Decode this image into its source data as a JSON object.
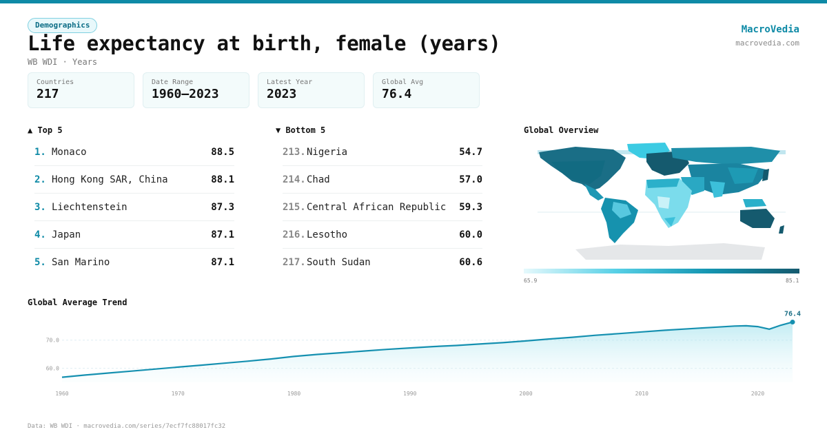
{
  "header": {
    "badge": "Demographics",
    "title": "Life expectancy at birth, female (years)",
    "subtitle": "WB WDI · Years"
  },
  "brand": {
    "name": "MacroVedia",
    "url": "macrovedia.com"
  },
  "stats": [
    {
      "label": "Countries",
      "value": "217"
    },
    {
      "label": "Date Range",
      "value": "1960–2023"
    },
    {
      "label": "Latest Year",
      "value": "2023"
    },
    {
      "label": "Global Avg",
      "value": "76.4"
    }
  ],
  "top5": {
    "title": "▲ Top 5",
    "items": [
      {
        "rank": "1.",
        "name": "Monaco",
        "value": "88.5"
      },
      {
        "rank": "2.",
        "name": "Hong Kong SAR, China",
        "value": "88.1"
      },
      {
        "rank": "3.",
        "name": "Liechtenstein",
        "value": "87.3"
      },
      {
        "rank": "4.",
        "name": "Japan",
        "value": "87.1"
      },
      {
        "rank": "5.",
        "name": "San Marino",
        "value": "87.1"
      }
    ]
  },
  "bottom5": {
    "title": "▼ Bottom 5",
    "items": [
      {
        "rank": "213.",
        "name": "Nigeria",
        "value": "54.7"
      },
      {
        "rank": "214.",
        "name": "Chad",
        "value": "57.0"
      },
      {
        "rank": "215.",
        "name": "Central African Republic",
        "value": "59.3"
      },
      {
        "rank": "216.",
        "name": "Lesotho",
        "value": "60.0"
      },
      {
        "rank": "217.",
        "name": "South Sudan",
        "value": "60.6"
      }
    ]
  },
  "map": {
    "title": "Global Overview",
    "legend_min": "65.9",
    "legend_max": "85.1",
    "colors": [
      "#e6f9fc",
      "#57d0e6",
      "#1596b2",
      "#155a6e"
    ]
  },
  "chart_data": {
    "type": "area",
    "title": "Global Average Trend",
    "x": [
      1960,
      1962,
      1964,
      1966,
      1968,
      1970,
      1972,
      1974,
      1976,
      1978,
      1980,
      1982,
      1984,
      1986,
      1988,
      1990,
      1992,
      1994,
      1996,
      1998,
      2000,
      2002,
      2004,
      2006,
      2008,
      2010,
      2012,
      2014,
      2016,
      2018,
      2019,
      2020,
      2021,
      2022,
      2023
    ],
    "values": [
      56.8,
      57.6,
      58.3,
      59.0,
      59.7,
      60.4,
      61.1,
      61.8,
      62.5,
      63.3,
      64.2,
      64.9,
      65.5,
      66.1,
      66.7,
      67.2,
      67.7,
      68.1,
      68.6,
      69.1,
      69.7,
      70.4,
      71.0,
      71.7,
      72.3,
      72.9,
      73.5,
      74.0,
      74.5,
      75.0,
      75.1,
      74.8,
      73.9,
      75.3,
      76.4
    ],
    "xticks": [
      "1960",
      "1970",
      "1980",
      "1990",
      "2000",
      "2010",
      "2020"
    ],
    "yticks": [
      "60.0",
      "70.0"
    ],
    "last_label": "76.4",
    "ylim": [
      55,
      78
    ],
    "color": "#1590b0",
    "grid": true
  },
  "footer": "Data: WB WDI · macrovedia.com/series/7ecf7fc88017fc32"
}
